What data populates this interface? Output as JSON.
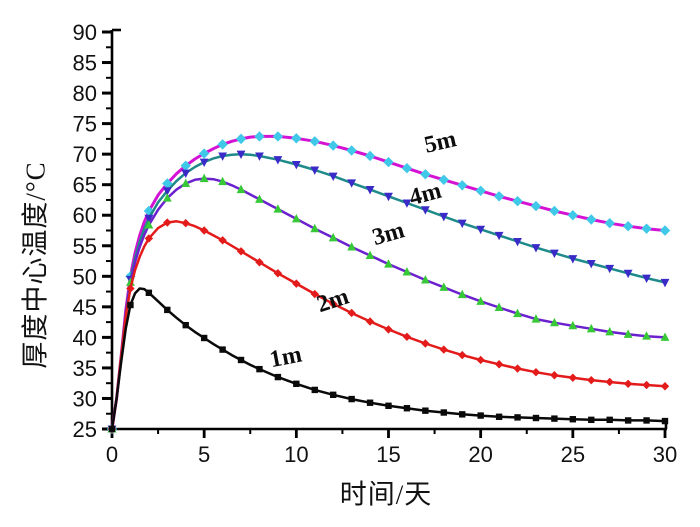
{
  "background_color": "#ffffff",
  "chart_data": {
    "type": "line",
    "title": "",
    "xlabel": "时间/天",
    "ylabel": "厚度中心温度/°C",
    "xlim": [
      0,
      30
    ],
    "ylim": [
      25,
      90
    ],
    "x_ticks": [
      0,
      5,
      10,
      15,
      20,
      25,
      30
    ],
    "y_ticks": [
      25,
      30,
      35,
      40,
      45,
      50,
      55,
      60,
      65,
      70,
      75,
      80,
      85,
      90
    ],
    "x_minor_step": 2.5,
    "y_minor_step": 2.5,
    "grid": false,
    "legend_position": "inline-curve-labels",
    "axis_color": "#000000",
    "tick_label_color": "#111111",
    "series": [
      {
        "name": "5m",
        "line_color": "#d412d4",
        "line_width": 3,
        "marker": "diamond",
        "marker_color": "#3fc8e8",
        "marker_size": 4.6,
        "label": {
          "x": 17.9,
          "y": 70.8,
          "rotate": -13
        },
        "points": [
          [
            0,
            25
          ],
          [
            0.25,
            30
          ],
          [
            0.5,
            37
          ],
          [
            0.75,
            44.5
          ],
          [
            1,
            50
          ],
          [
            1.25,
            53.8
          ],
          [
            1.5,
            56.7
          ],
          [
            1.75,
            58.9
          ],
          [
            2,
            60.7
          ],
          [
            2.5,
            63.3
          ],
          [
            3,
            65.2
          ],
          [
            3.5,
            66.8
          ],
          [
            4,
            68.1
          ],
          [
            4.5,
            69.2
          ],
          [
            5,
            70.1
          ],
          [
            5.5,
            70.9
          ],
          [
            6,
            71.6
          ],
          [
            6.5,
            72.1
          ],
          [
            7,
            72.5
          ],
          [
            7.5,
            72.8
          ],
          [
            8,
            72.9
          ],
          [
            9,
            72.9
          ],
          [
            10,
            72.6
          ],
          [
            11,
            72.1
          ],
          [
            12,
            71.4
          ],
          [
            13,
            70.6
          ],
          [
            14,
            69.7
          ],
          [
            15,
            68.7
          ],
          [
            16,
            67.7
          ],
          [
            17,
            66.7
          ],
          [
            18,
            65.8
          ],
          [
            19,
            64.9
          ],
          [
            20,
            64
          ],
          [
            21,
            63.1
          ],
          [
            22,
            62.3
          ],
          [
            23,
            61.5
          ],
          [
            24,
            60.7
          ],
          [
            25,
            60
          ],
          [
            26,
            59.3
          ],
          [
            27,
            58.7
          ],
          [
            28,
            58.2
          ],
          [
            29,
            57.8
          ],
          [
            30,
            57.5
          ]
        ]
      },
      {
        "name": "4m",
        "line_color": "#1e8a8a",
        "line_width": 2.5,
        "marker": "triangle-down",
        "marker_color": "#3a2bc8",
        "marker_size": 4.4,
        "label": {
          "x": 17.1,
          "y": 62.3,
          "rotate": -15
        },
        "points": [
          [
            0,
            25
          ],
          [
            0.25,
            30
          ],
          [
            0.5,
            37
          ],
          [
            0.75,
            44
          ],
          [
            1,
            49.5
          ],
          [
            1.25,
            53
          ],
          [
            1.5,
            55.7
          ],
          [
            1.75,
            57.8
          ],
          [
            2,
            59.5
          ],
          [
            2.5,
            62.1
          ],
          [
            3,
            64
          ],
          [
            3.5,
            65.6
          ],
          [
            4,
            66.9
          ],
          [
            4.5,
            67.9
          ],
          [
            5,
            68.7
          ],
          [
            5.5,
            69.3
          ],
          [
            6,
            69.7
          ],
          [
            6.5,
            69.9
          ],
          [
            7,
            70
          ],
          [
            7.5,
            69.9
          ],
          [
            8,
            69.7
          ],
          [
            9,
            69.1
          ],
          [
            10,
            68.3
          ],
          [
            11,
            67.4
          ],
          [
            12,
            66.4
          ],
          [
            13,
            65.3
          ],
          [
            14,
            64.2
          ],
          [
            15,
            63.1
          ],
          [
            16,
            62
          ],
          [
            17,
            60.9
          ],
          [
            18,
            59.8
          ],
          [
            19,
            58.7
          ],
          [
            20,
            57.7
          ],
          [
            21,
            56.7
          ],
          [
            22,
            55.7
          ],
          [
            23,
            54.7
          ],
          [
            24,
            53.8
          ],
          [
            25,
            52.9
          ],
          [
            26,
            52.1
          ],
          [
            27,
            51.3
          ],
          [
            28,
            50.5
          ],
          [
            29,
            49.7
          ],
          [
            30,
            49
          ]
        ]
      },
      {
        "name": "3m",
        "line_color": "#6b21ce",
        "line_width": 2.5,
        "marker": "triangle-up",
        "marker_color": "#37c837",
        "marker_size": 4.4,
        "label": {
          "x": 15.1,
          "y": 55.8,
          "rotate": -16
        },
        "points": [
          [
            0,
            25
          ],
          [
            0.25,
            30
          ],
          [
            0.5,
            37
          ],
          [
            0.75,
            44
          ],
          [
            1,
            49
          ],
          [
            1.25,
            52.3
          ],
          [
            1.5,
            54.8
          ],
          [
            1.75,
            56.8
          ],
          [
            2,
            58.4
          ],
          [
            2.5,
            60.9
          ],
          [
            3,
            62.8
          ],
          [
            3.5,
            64.2
          ],
          [
            4,
            65.2
          ],
          [
            4.5,
            65.8
          ],
          [
            5,
            66
          ],
          [
            5.5,
            65.9
          ],
          [
            6,
            65.5
          ],
          [
            6.5,
            64.9
          ],
          [
            7,
            64.2
          ],
          [
            7.5,
            63.4
          ],
          [
            8,
            62.6
          ],
          [
            9,
            61
          ],
          [
            10,
            59.4
          ],
          [
            11,
            57.8
          ],
          [
            12,
            56.3
          ],
          [
            13,
            54.8
          ],
          [
            14,
            53.4
          ],
          [
            15,
            52
          ],
          [
            16,
            50.7
          ],
          [
            17,
            49.4
          ],
          [
            18,
            48.2
          ],
          [
            19,
            47
          ],
          [
            20,
            45.9
          ],
          [
            21,
            44.9
          ],
          [
            22,
            43.9
          ],
          [
            23,
            43
          ],
          [
            24,
            42.4
          ],
          [
            25,
            41.9
          ],
          [
            26,
            41.4
          ],
          [
            27,
            40.9
          ],
          [
            28,
            40.5
          ],
          [
            29,
            40.2
          ],
          [
            30,
            40
          ]
        ]
      },
      {
        "name": "2m",
        "line_color": "#e31b1b",
        "line_width": 2.5,
        "marker": "diamond",
        "marker_color": "#e31b1b",
        "marker_size": 3.6,
        "label": {
          "x": 12.1,
          "y": 44.9,
          "rotate": -18
        },
        "points": [
          [
            0,
            25
          ],
          [
            0.25,
            30
          ],
          [
            0.5,
            37
          ],
          [
            0.75,
            43.5
          ],
          [
            1,
            48
          ],
          [
            1.25,
            51
          ],
          [
            1.5,
            53.2
          ],
          [
            1.75,
            54.9
          ],
          [
            2,
            56.2
          ],
          [
            2.5,
            57.9
          ],
          [
            3,
            58.8
          ],
          [
            3.5,
            59
          ],
          [
            4,
            58.7
          ],
          [
            4.5,
            58.2
          ],
          [
            5,
            57.5
          ],
          [
            5.5,
            56.7
          ],
          [
            6,
            55.9
          ],
          [
            6.5,
            55
          ],
          [
            7,
            54.1
          ],
          [
            7.5,
            53.2
          ],
          [
            8,
            52.3
          ],
          [
            9,
            50.5
          ],
          [
            10,
            48.8
          ],
          [
            11,
            47.1
          ],
          [
            12,
            45.5
          ],
          [
            13,
            44
          ],
          [
            14,
            42.6
          ],
          [
            15,
            41.3
          ],
          [
            16,
            40.1
          ],
          [
            17,
            39
          ],
          [
            18,
            38
          ],
          [
            19,
            37.1
          ],
          [
            20,
            36.3
          ],
          [
            21,
            35.6
          ],
          [
            22,
            34.9
          ],
          [
            23,
            34.3
          ],
          [
            24,
            33.8
          ],
          [
            25,
            33.4
          ],
          [
            26,
            33
          ],
          [
            27,
            32.7
          ],
          [
            28,
            32.4
          ],
          [
            29,
            32.2
          ],
          [
            30,
            32
          ]
        ]
      },
      {
        "name": "1m",
        "line_color": "#0a0a0a",
        "line_width": 2.5,
        "marker": "square",
        "marker_color": "#0a0a0a",
        "marker_size": 3.2,
        "label": {
          "x": 9.5,
          "y": 35.6,
          "rotate": -11
        },
        "points": [
          [
            0,
            25
          ],
          [
            0.25,
            30
          ],
          [
            0.5,
            36
          ],
          [
            0.75,
            41.5
          ],
          [
            1,
            45.3
          ],
          [
            1.25,
            47.2
          ],
          [
            1.5,
            48
          ],
          [
            1.75,
            47.9
          ],
          [
            2,
            47.3
          ],
          [
            2.5,
            45.9
          ],
          [
            3,
            44.5
          ],
          [
            3.5,
            43.2
          ],
          [
            4,
            42
          ],
          [
            4.5,
            40.9
          ],
          [
            5,
            39.9
          ],
          [
            5.5,
            38.9
          ],
          [
            6,
            38
          ],
          [
            6.5,
            37.1
          ],
          [
            7,
            36.3
          ],
          [
            7.5,
            35.5
          ],
          [
            8,
            34.8
          ],
          [
            9,
            33.5
          ],
          [
            10,
            32.4
          ],
          [
            11,
            31.4
          ],
          [
            12,
            30.6
          ],
          [
            13,
            29.9
          ],
          [
            14,
            29.3
          ],
          [
            15,
            28.8
          ],
          [
            16,
            28.4
          ],
          [
            17,
            28
          ],
          [
            18,
            27.7
          ],
          [
            19,
            27.4
          ],
          [
            20,
            27.2
          ],
          [
            21,
            27
          ],
          [
            22,
            26.9
          ],
          [
            23,
            26.8
          ],
          [
            24,
            26.7
          ],
          [
            25,
            26.6
          ],
          [
            26,
            26.5
          ],
          [
            27,
            26.5
          ],
          [
            28,
            26.4
          ],
          [
            29,
            26.4
          ],
          [
            30,
            26.3
          ]
        ]
      }
    ]
  }
}
